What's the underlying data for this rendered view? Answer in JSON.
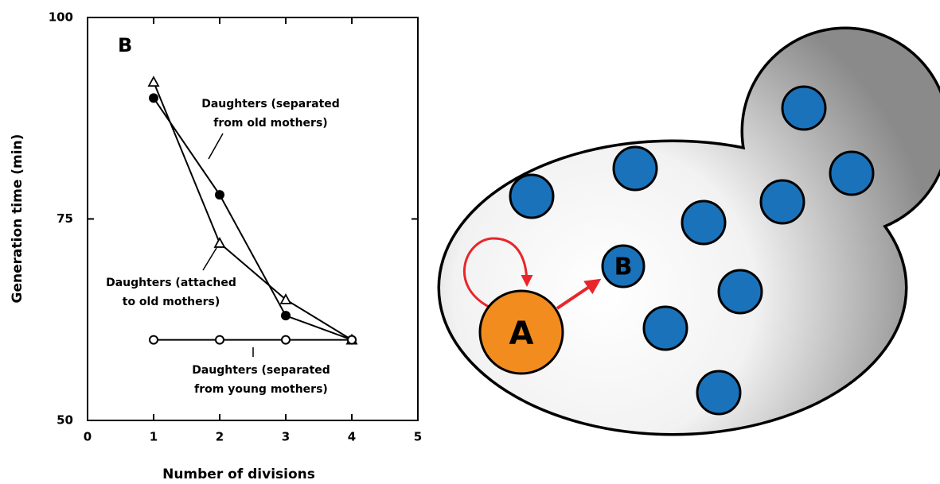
{
  "chart_data": {
    "type": "line",
    "panel_label": "B",
    "x_label": "Number of divisions",
    "y_label": "Generation time (min)",
    "x": [
      1,
      2,
      3,
      4
    ],
    "series": [
      {
        "marker": "filled-circle",
        "color": "#000000",
        "values": [
          90,
          78,
          63,
          60
        ]
      },
      {
        "marker": "open-triangle",
        "color": "#000000",
        "values": [
          92,
          72,
          65,
          60
        ]
      },
      {
        "marker": "open-circle",
        "color": "#000000",
        "values": [
          60,
          60,
          60,
          60
        ]
      }
    ],
    "xlim": [
      0,
      5
    ],
    "xticks": [
      0,
      1,
      2,
      3,
      4,
      5
    ],
    "ylim": [
      50,
      100
    ],
    "yticks": [
      50,
      75,
      100
    ],
    "annotations": [
      {
        "lines": [
          "Daughters (separated",
          "from old mothers)"
        ]
      },
      {
        "lines": [
          "Daughters (attached",
          "to old mothers)"
        ]
      },
      {
        "lines": [
          "Daughters (separated",
          "from young mothers)"
        ]
      }
    ]
  },
  "diagram": {
    "nodes": [
      {
        "label": "A"
      },
      {
        "label": "B"
      }
    ]
  }
}
